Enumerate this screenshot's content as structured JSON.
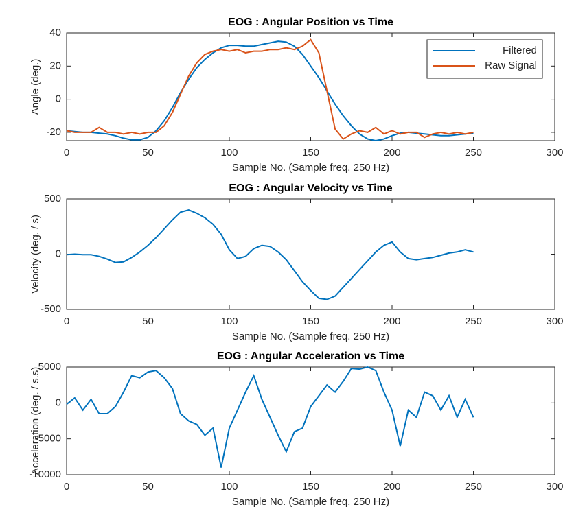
{
  "chart_data": [
    {
      "type": "line",
      "title": "EOG : Angular Position vs Time",
      "xlabel": "Sample No. (Sample freq. 250 Hz)",
      "ylabel": "Angle (deg.)",
      "x": [
        0,
        5,
        10,
        15,
        20,
        25,
        30,
        35,
        40,
        45,
        50,
        55,
        60,
        65,
        70,
        75,
        80,
        85,
        90,
        95,
        100,
        105,
        110,
        115,
        120,
        125,
        130,
        135,
        140,
        145,
        150,
        155,
        160,
        165,
        170,
        175,
        180,
        185,
        190,
        195,
        200,
        205,
        210,
        215,
        220,
        225,
        230,
        235,
        240,
        245,
        250
      ],
      "series": [
        {
          "name": "Filtered",
          "color": "#0072bd",
          "values": [
            -19,
            -19.5,
            -20,
            -20,
            -20.5,
            -21,
            -22,
            -23.5,
            -24.5,
            -24.5,
            -23,
            -19,
            -13,
            -5,
            4,
            12,
            19,
            24,
            28,
            31,
            32.5,
            32.5,
            32,
            32,
            33,
            34,
            35,
            34.5,
            32,
            27,
            20,
            13,
            5,
            -3,
            -10,
            -16,
            -21,
            -24,
            -25,
            -24,
            -22,
            -20.5,
            -20,
            -20.5,
            -21,
            -21.5,
            -22,
            -22,
            -21.5,
            -21,
            -20.5
          ]
        },
        {
          "name": "Raw Signal",
          "color": "#d95319",
          "values": [
            -19,
            -20,
            -20,
            -20,
            -17,
            -20,
            -20,
            -21,
            -20,
            -21,
            -20,
            -20,
            -16,
            -8,
            3,
            14,
            22,
            27,
            29,
            30,
            29,
            30,
            28,
            29,
            29,
            30,
            30,
            31,
            30,
            32,
            36,
            28,
            5,
            -18,
            -24,
            -21,
            -19,
            -20,
            -17,
            -21,
            -19,
            -21,
            -20,
            -20,
            -23,
            -21,
            -20,
            -21,
            -20,
            -21,
            -20
          ]
        }
      ],
      "xlim": [
        0,
        300
      ],
      "xticks": [
        0,
        50,
        100,
        150,
        200,
        250,
        300
      ],
      "ylim": [
        -25,
        40
      ],
      "yticks": [
        -20,
        0,
        20,
        40
      ],
      "legend": "northeast"
    },
    {
      "type": "line",
      "title": "EOG : Angular Velocity vs Time",
      "xlabel": "Sample No. (Sample freq. 250 Hz)",
      "ylabel": "Velocity (deg. / s)",
      "x": [
        0,
        5,
        10,
        15,
        20,
        25,
        30,
        35,
        40,
        45,
        50,
        55,
        60,
        65,
        70,
        75,
        80,
        85,
        90,
        95,
        100,
        105,
        110,
        115,
        120,
        125,
        130,
        135,
        140,
        145,
        150,
        155,
        160,
        165,
        170,
        175,
        180,
        185,
        190,
        195,
        200,
        205,
        210,
        215,
        220,
        225,
        230,
        235,
        240,
        245,
        250
      ],
      "series": [
        {
          "name": "Velocity",
          "color": "#0072bd",
          "values": [
            -5,
            0,
            -5,
            -5,
            -20,
            -45,
            -75,
            -70,
            -30,
            20,
            80,
            150,
            230,
            310,
            380,
            400,
            370,
            330,
            270,
            180,
            40,
            -40,
            -20,
            50,
            80,
            70,
            20,
            -50,
            -150,
            -250,
            -330,
            -400,
            -410,
            -380,
            -300,
            -220,
            -140,
            -60,
            20,
            80,
            110,
            20,
            -40,
            -50,
            -40,
            -30,
            -10,
            10,
            20,
            40,
            20
          ]
        }
      ],
      "xlim": [
        0,
        300
      ],
      "xticks": [
        0,
        50,
        100,
        150,
        200,
        250,
        300
      ],
      "ylim": [
        -500,
        500
      ],
      "yticks": [
        -500,
        0,
        500
      ]
    },
    {
      "type": "line",
      "title": "EOG : Angular Acceleration vs Time",
      "xlabel": "Sample No. (Sample freq. 250 Hz)",
      "ylabel": "Acceleration (deg. / s.s)",
      "x": [
        0,
        5,
        10,
        15,
        20,
        25,
        30,
        35,
        40,
        45,
        50,
        55,
        60,
        65,
        70,
        75,
        80,
        85,
        90,
        95,
        100,
        105,
        110,
        115,
        120,
        125,
        130,
        135,
        140,
        145,
        150,
        155,
        160,
        165,
        170,
        175,
        180,
        185,
        190,
        195,
        200,
        205,
        210,
        215,
        220,
        225,
        230,
        235,
        240,
        245,
        250
      ],
      "series": [
        {
          "name": "Acceleration",
          "color": "#0072bd",
          "values": [
            -200,
            700,
            -1000,
            500,
            -1500,
            -1500,
            -500,
            1500,
            3800,
            3500,
            4300,
            4500,
            3500,
            2000,
            -1500,
            -2500,
            -3000,
            -4500,
            -3500,
            -9000,
            -3500,
            -1000,
            1500,
            3800,
            500,
            -2000,
            -4500,
            -6800,
            -4000,
            -3500,
            -500,
            1000,
            2500,
            1500,
            3000,
            4800,
            4700,
            5000,
            4500,
            1500,
            -1000,
            -6000,
            -1000,
            -2000,
            1500,
            1000,
            -1000,
            1000,
            -2000,
            500,
            -2000
          ]
        }
      ],
      "xlim": [
        0,
        300
      ],
      "xticks": [
        0,
        50,
        100,
        150,
        200,
        250,
        300
      ],
      "ylim": [
        -10000,
        5000
      ],
      "yticks": [
        -10000,
        -5000,
        0,
        5000
      ]
    }
  ]
}
